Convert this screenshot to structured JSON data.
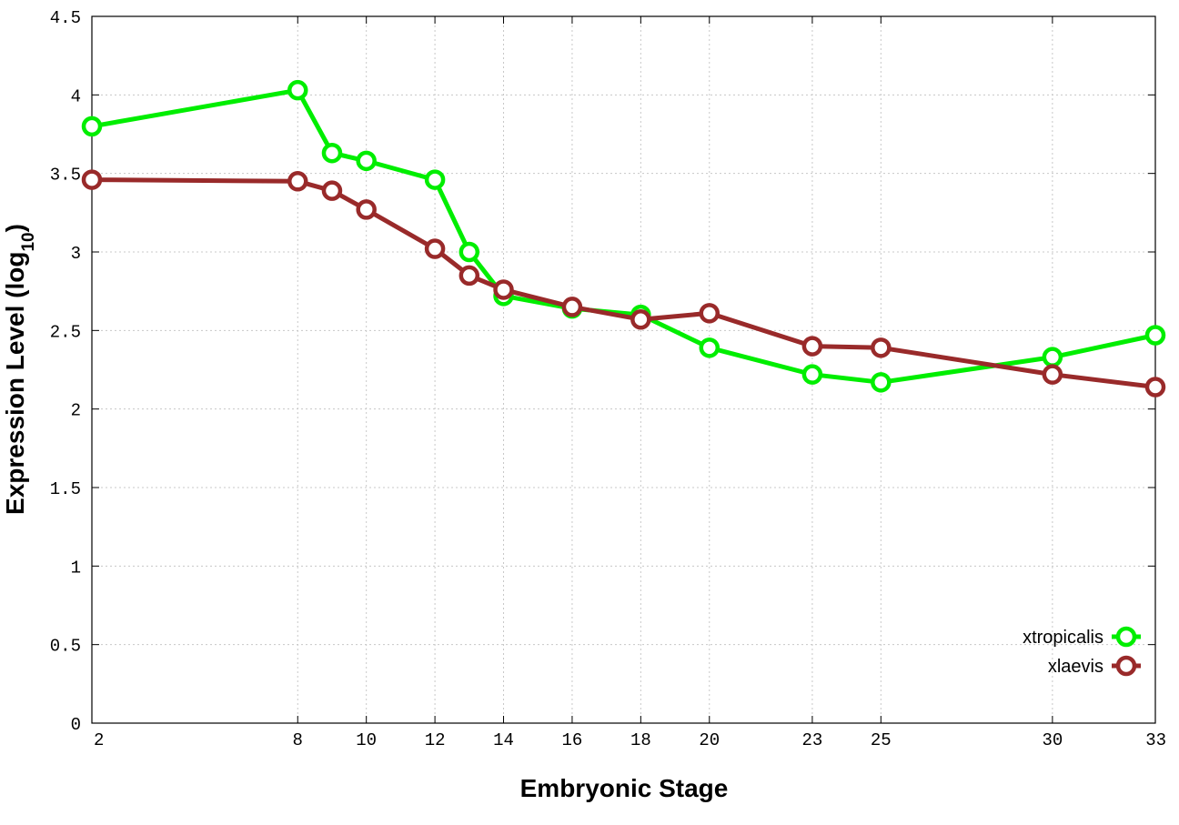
{
  "chart_data": {
    "type": "line",
    "xlabel": "Embryonic Stage",
    "ylabel": "Expression Level (log",
    "ylabel_sub": "10",
    "ylabel_end": ")",
    "x_ticks": [
      2,
      8,
      10,
      12,
      14,
      16,
      18,
      20,
      23,
      25,
      30,
      33
    ],
    "y_ticks": [
      "0",
      "0.5",
      "1",
      "1.5",
      "2",
      "2.5",
      "3",
      "3.5",
      "4",
      "4.5"
    ],
    "y_tick_values": [
      0,
      0.5,
      1,
      1.5,
      2,
      2.5,
      3,
      3.5,
      4,
      4.5
    ],
    "xlim": [
      2,
      33
    ],
    "ylim": [
      0,
      4.5
    ],
    "grid": true,
    "legend_position": "bottom-right",
    "x": [
      2,
      8,
      9,
      10,
      12,
      13,
      14,
      16,
      18,
      20,
      23,
      25,
      30,
      33
    ],
    "series": [
      {
        "name": "xtropicalis",
        "color": "#00ee00",
        "values": [
          3.8,
          4.03,
          3.63,
          3.58,
          3.46,
          3.0,
          2.72,
          2.64,
          2.6,
          2.39,
          2.22,
          2.17,
          2.33,
          2.47
        ]
      },
      {
        "name": "xlaevis",
        "color": "#992a2a",
        "values": [
          3.46,
          3.45,
          3.39,
          3.27,
          3.02,
          2.85,
          2.76,
          2.65,
          2.57,
          2.61,
          2.4,
          2.39,
          2.22,
          2.14
        ]
      }
    ]
  }
}
